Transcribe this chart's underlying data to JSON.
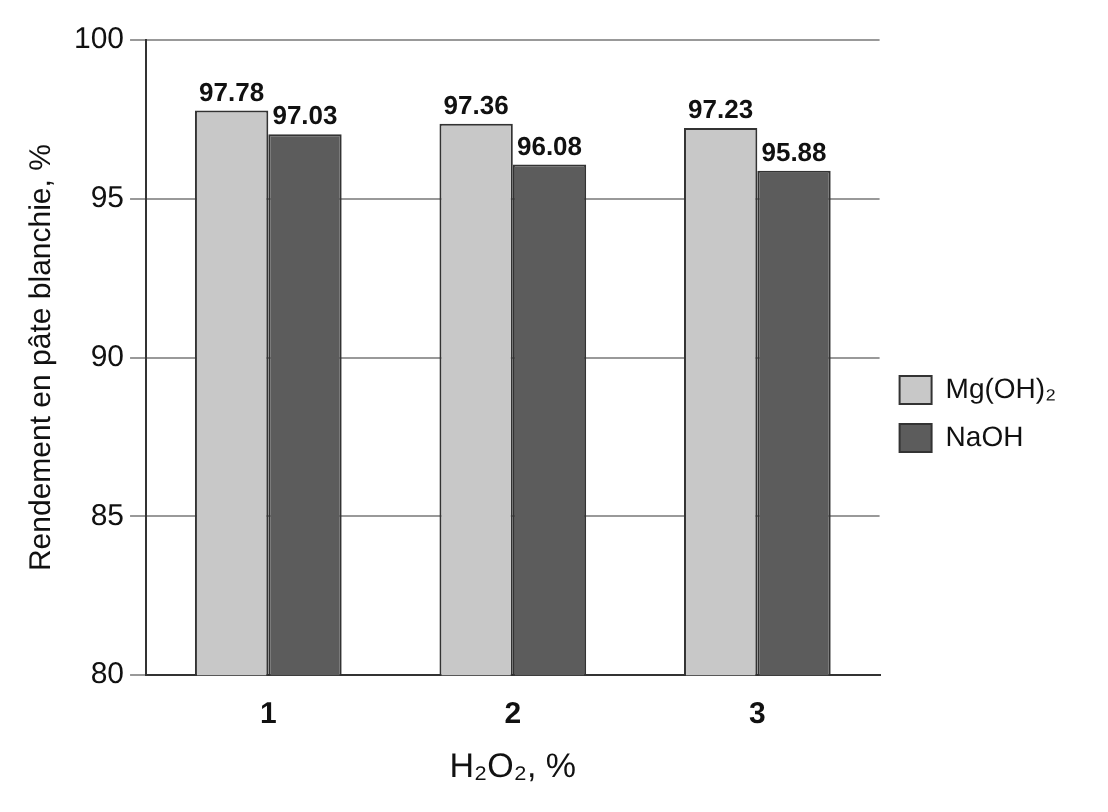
{
  "chart_data": {
    "type": "bar",
    "xlabel": "H₂O₂, %",
    "ylabel": "Rendement en pâte blanchie, %",
    "categories": [
      "1",
      "2",
      "3"
    ],
    "series": [
      {
        "name": "Mg(OH)₂",
        "color": "#c8c8c8",
        "values": [
          97.78,
          97.36,
          97.23
        ]
      },
      {
        "name": "NaOH",
        "color": "#5c5c5c",
        "values": [
          97.03,
          96.08,
          95.88
        ]
      }
    ],
    "ylim": [
      80,
      100
    ],
    "yticks": [
      80,
      85,
      90,
      95,
      100
    ],
    "grid": "y",
    "legend": "right",
    "data_labels": true
  }
}
